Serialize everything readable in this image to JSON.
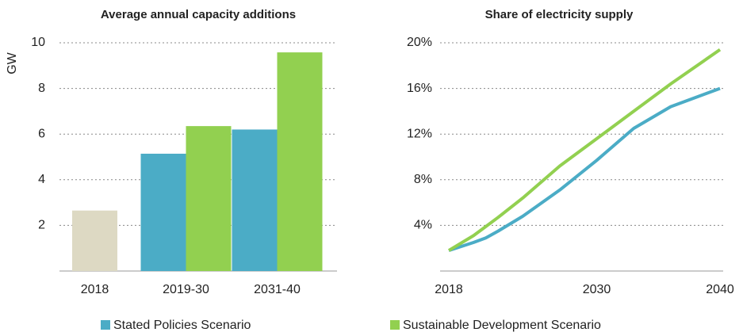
{
  "chart_data": [
    {
      "type": "bar",
      "title": "Average annual capacity additions",
      "y_label": "GW",
      "categories": [
        "2018",
        "2019-30",
        "2031-40"
      ],
      "series": [
        {
          "name": "Stated Policies Scenario",
          "color": "#4bacc6",
          "values": [
            null,
            5.14,
            6.2
          ]
        },
        {
          "name": "Sustainable Development Scenario",
          "color": "#92d050",
          "values": [
            null,
            6.35,
            9.58
          ]
        },
        {
          "color": "#ddd9c3",
          "values": [
            2.65,
            null,
            null
          ]
        }
      ],
      "ylim": [
        0,
        10
      ],
      "yticks": [
        2,
        4,
        6,
        8,
        10
      ],
      "grid": true,
      "legend": "bottom"
    },
    {
      "type": "line",
      "title": "Share of electricity supply",
      "x": [
        2018,
        2020,
        2021,
        2022,
        2024,
        2027,
        2030,
        2033,
        2036,
        2040
      ],
      "series": [
        {
          "name": "Stated Policies Scenario",
          "color": "#4bacc6",
          "values": [
            1.8,
            2.5,
            2.9,
            3.5,
            4.8,
            7.1,
            9.7,
            12.5,
            14.4,
            16.0
          ]
        },
        {
          "name": "Sustainable Development Scenario",
          "color": "#92d050",
          "values": [
            1.8,
            3.1,
            3.9,
            4.7,
            6.4,
            9.2,
            11.6,
            14.0,
            16.4,
            19.4
          ]
        }
      ],
      "xlim": [
        2018,
        2040
      ],
      "xticks": [
        2018,
        2030,
        2040
      ],
      "ylim": [
        0,
        20
      ],
      "yticks": [
        {
          "value": 4,
          "label": "4%"
        },
        {
          "value": 8,
          "label": "8%"
        },
        {
          "value": 12,
          "label": "12%"
        },
        {
          "value": 16,
          "label": "16%"
        },
        {
          "value": 20,
          "label": "20%"
        }
      ],
      "grid": true
    }
  ]
}
